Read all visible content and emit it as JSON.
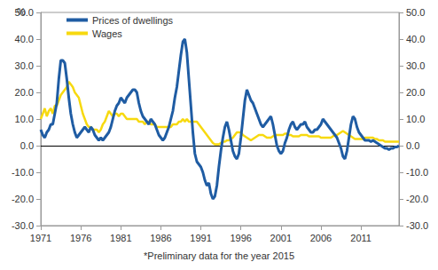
{
  "chart_data": {
    "type": "line",
    "y_label": "%",
    "note": "*Preliminary data for the year 2015",
    "grid": false,
    "legend": "top-left",
    "xlim": [
      1971,
      2015.75
    ],
    "xticks": [
      1971,
      1976,
      1981,
      1986,
      1991,
      1996,
      2001,
      2006,
      2011
    ],
    "ylim": [
      -30,
      50
    ],
    "yticks": [
      {
        "value": -30,
        "label": "-30.0"
      },
      {
        "value": -20,
        "label": "-20.0"
      },
      {
        "value": -10,
        "label": "-10.0"
      },
      {
        "value": 0,
        "label": "0.0"
      },
      {
        "value": 10,
        "label": "10.0"
      },
      {
        "value": 20,
        "label": "20.0"
      },
      {
        "value": 30,
        "label": "30.0"
      },
      {
        "value": 40,
        "label": "40.0"
      },
      {
        "value": 50,
        "label": "50.0"
      }
    ],
    "y2lim": [
      -30,
      50
    ],
    "y2ticks": [
      {
        "value": -30,
        "label": "-30.0"
      },
      {
        "value": -20,
        "label": "-20.0"
      },
      {
        "value": -10,
        "label": "-10.0"
      },
      {
        "value": 0,
        "label": "0.0"
      },
      {
        "value": 10,
        "label": "10.0"
      },
      {
        "value": 20,
        "label": "20.0"
      },
      {
        "value": 30,
        "label": "30.0"
      },
      {
        "value": 40,
        "label": "40.0"
      },
      {
        "value": 50,
        "label": "50.0"
      }
    ],
    "x": [
      1971,
      1971.25,
      1971.5,
      1971.75,
      1972,
      1972.25,
      1972.5,
      1972.75,
      1973,
      1973.25,
      1973.5,
      1973.75,
      1974,
      1974.25,
      1974.5,
      1974.75,
      1975,
      1975.25,
      1975.5,
      1975.75,
      1976,
      1976.25,
      1976.5,
      1976.75,
      1977,
      1977.25,
      1977.5,
      1977.75,
      1978,
      1978.25,
      1978.5,
      1978.75,
      1979,
      1979.25,
      1979.5,
      1979.75,
      1980,
      1980.25,
      1980.5,
      1980.75,
      1981,
      1981.25,
      1981.5,
      1981.75,
      1982,
      1982.25,
      1982.5,
      1982.75,
      1983,
      1983.25,
      1983.5,
      1983.75,
      1984,
      1984.25,
      1984.5,
      1984.75,
      1985,
      1985.25,
      1985.5,
      1985.75,
      1986,
      1986.25,
      1986.5,
      1986.75,
      1987,
      1987.25,
      1987.5,
      1987.75,
      1988,
      1988.25,
      1988.5,
      1988.75,
      1989,
      1989.25,
      1989.5,
      1989.75,
      1990,
      1990.25,
      1990.5,
      1990.75,
      1991,
      1991.25,
      1991.5,
      1991.75,
      1992,
      1992.25,
      1992.5,
      1992.75,
      1993,
      1993.25,
      1993.5,
      1993.75,
      1994,
      1994.25,
      1994.5,
      1994.75,
      1995,
      1995.25,
      1995.5,
      1995.75,
      1996,
      1996.25,
      1996.5,
      1996.75,
      1997,
      1997.25,
      1997.5,
      1997.75,
      1998,
      1998.25,
      1998.5,
      1998.75,
      1999,
      1999.25,
      1999.5,
      1999.75,
      2000,
      2000.25,
      2000.5,
      2000.75,
      2001,
      2001.25,
      2001.5,
      2001.75,
      2002,
      2002.25,
      2002.5,
      2002.75,
      2003,
      2003.25,
      2003.5,
      2003.75,
      2004,
      2004.25,
      2004.5,
      2004.75,
      2005,
      2005.25,
      2005.5,
      2005.75,
      2006,
      2006.25,
      2006.5,
      2006.75,
      2007,
      2007.25,
      2007.5,
      2007.75,
      2008,
      2008.25,
      2008.5,
      2008.75,
      2009,
      2009.25,
      2009.5,
      2009.75,
      2010,
      2010.25,
      2010.5,
      2010.75,
      2011,
      2011.25,
      2011.5,
      2011.75,
      2012,
      2012.25,
      2012.5,
      2012.75,
      2013,
      2013.25,
      2013.5,
      2013.75,
      2014,
      2014.25,
      2014.5,
      2014.75,
      2015,
      2015.25,
      2015.5,
      2015.75
    ],
    "series": [
      {
        "name": "Prices of dwellings",
        "color": "#1f5ca3",
        "values": [
          6,
          4,
          3,
          5,
          6,
          8,
          8,
          12,
          16,
          25,
          32,
          32,
          31,
          25,
          18,
          12,
          8,
          5,
          3,
          4,
          5,
          6,
          7,
          6,
          5,
          7,
          6,
          4,
          3,
          2,
          3,
          2,
          3,
          4,
          5,
          7,
          10,
          13,
          15,
          16,
          18,
          17,
          16,
          18,
          19,
          20,
          21,
          21,
          20,
          16,
          13,
          11,
          10,
          9,
          8,
          10,
          9,
          8,
          6,
          4,
          3,
          2,
          3,
          5,
          7,
          10,
          13,
          18,
          22,
          28,
          34,
          39,
          40,
          35,
          25,
          15,
          5,
          -3,
          -6,
          -7,
          -8,
          -10,
          -13,
          -15,
          -14,
          -18,
          -20,
          -19,
          -15,
          -8,
          -2,
          3,
          7,
          9,
          6,
          2,
          -2,
          -4,
          -5,
          -3,
          3,
          10,
          17,
          21,
          19,
          17,
          16,
          14,
          12,
          10,
          8,
          7,
          8,
          9,
          10,
          11,
          8,
          4,
          0,
          -2,
          -3,
          -2,
          1,
          3,
          6,
          8,
          9,
          7,
          6,
          7,
          8,
          8,
          9,
          7,
          6,
          5,
          5,
          6,
          6,
          7,
          8,
          10,
          9,
          8,
          7,
          6,
          5,
          4,
          3,
          1,
          -1,
          -4,
          -5,
          -2,
          3,
          8,
          11,
          10,
          7,
          5,
          4,
          3,
          2,
          2,
          2,
          1.5,
          2,
          1.5,
          1,
          0.5,
          0,
          -0.5,
          -1,
          -1,
          -1.5,
          -1,
          -1,
          -0.5,
          -0.5,
          0
        ]
      },
      {
        "name": "Wages",
        "color": "#f7d90f",
        "values": [
          10,
          12,
          14,
          11,
          13,
          14,
          12,
          15,
          15,
          17,
          19,
          20,
          21,
          22,
          24,
          23,
          22,
          20,
          19,
          18,
          15,
          12,
          10,
          8,
          7,
          7,
          6,
          6,
          6,
          5,
          6,
          8,
          9,
          11,
          13,
          12,
          11,
          12,
          12,
          11,
          12,
          12,
          11,
          10,
          10,
          10,
          10,
          10,
          10,
          9,
          9,
          9,
          8,
          9,
          9,
          8,
          8,
          8,
          7,
          7,
          7,
          7,
          7,
          7,
          7,
          7,
          8,
          8,
          8,
          9,
          9,
          10,
          9,
          10,
          9,
          9,
          9,
          9,
          9,
          8,
          7,
          6,
          5,
          4,
          3,
          2,
          1,
          0.5,
          0.5,
          0.5,
          1,
          1.5,
          1.5,
          2,
          2,
          2.5,
          3,
          4,
          5,
          5,
          5,
          4,
          3.5,
          3,
          2.5,
          2,
          2.5,
          3,
          3.5,
          4,
          4,
          4,
          3.5,
          3,
          3,
          3,
          3.5,
          4,
          4,
          4,
          4,
          4,
          4.5,
          4.5,
          4,
          4,
          3.5,
          3.5,
          3.5,
          3.5,
          4,
          4,
          4,
          4,
          3.5,
          3.5,
          3.5,
          3.5,
          3.5,
          3.5,
          3,
          3,
          3,
          3,
          3,
          3,
          3.5,
          4,
          4,
          4.5,
          5,
          5.5,
          5,
          4.5,
          4,
          3.5,
          3,
          2.5,
          2.5,
          2.5,
          2.5,
          2.5,
          3,
          3,
          3,
          3,
          3,
          2.5,
          2.5,
          2,
          2,
          2,
          1.5,
          1.5,
          1.5,
          1.5,
          1.5,
          1.5,
          1.5,
          1.5
        ]
      }
    ]
  }
}
